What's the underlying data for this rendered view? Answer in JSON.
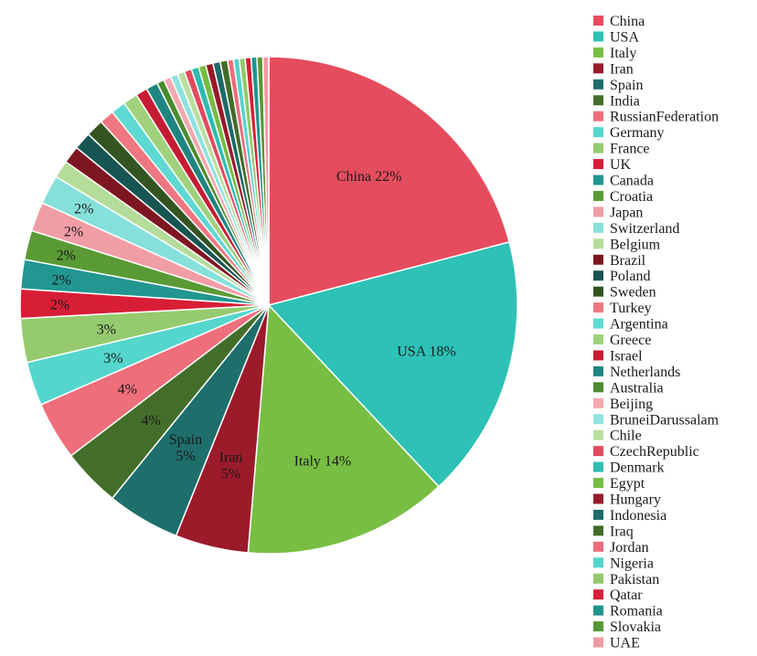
{
  "chart_data": {
    "type": "pie",
    "title": "",
    "start_angle_deg": 0,
    "direction": "clockwise",
    "legend_position": "right",
    "labels_inside": true,
    "slices": [
      {
        "name": "China",
        "value": 22.0,
        "color": "#E54C5E",
        "label": "China 22%"
      },
      {
        "name": "USA",
        "value": 18.0,
        "color": "#2EC1B6",
        "label": "USA 18%"
      },
      {
        "name": "Italy",
        "value": 14.0,
        "color": "#77BE43",
        "label": "Italy 14%"
      },
      {
        "name": "Iran",
        "value": 5.0,
        "color": "#9B1B2B",
        "label": "Iran\n5%"
      },
      {
        "name": "Spain",
        "value": 5.0,
        "color": "#1E6E6B",
        "label": "Spain\n5%"
      },
      {
        "name": "India",
        "value": 4.0,
        "color": "#436E2A",
        "label": "4%"
      },
      {
        "name": "RussianFederation",
        "value": 4.0,
        "color": "#EE6E7C",
        "label": "4%"
      },
      {
        "name": "Germany",
        "value": 3.0,
        "color": "#55D6CD",
        "label": "3%"
      },
      {
        "name": "France",
        "value": 3.0,
        "color": "#95CB6E",
        "label": "3%"
      },
      {
        "name": "UK",
        "value": 2.0,
        "color": "#D81E36",
        "label": "2%"
      },
      {
        "name": "Canada",
        "value": 2.0,
        "color": "#229690",
        "label": "2%"
      },
      {
        "name": "Croatia",
        "value": 2.0,
        "color": "#5A9A35",
        "label": "2%"
      },
      {
        "name": "Japan",
        "value": 2.0,
        "color": "#F19DA6",
        "label": "2%"
      },
      {
        "name": "Switzerland",
        "value": 2.0,
        "color": "#86E0DA",
        "label": "2%"
      },
      {
        "name": "Belgium",
        "value": 1.2,
        "color": "#B5DD9A",
        "label": ""
      },
      {
        "name": "Brazil",
        "value": 1.2,
        "color": "#7E1622",
        "label": ""
      },
      {
        "name": "Poland",
        "value": 1.2,
        "color": "#175553",
        "label": ""
      },
      {
        "name": "Sweden",
        "value": 1.2,
        "color": "#345522",
        "label": ""
      },
      {
        "name": "Turkey",
        "value": 1.0,
        "color": "#EE7782",
        "label": ""
      },
      {
        "name": "Argentina",
        "value": 1.0,
        "color": "#5ED9D1",
        "label": ""
      },
      {
        "name": "Greece",
        "value": 1.0,
        "color": "#A0D17C",
        "label": ""
      },
      {
        "name": "Israel",
        "value": 0.8,
        "color": "#C41D33",
        "label": ""
      },
      {
        "name": "Netherlands",
        "value": 0.8,
        "color": "#1F8580",
        "label": ""
      },
      {
        "name": "Australia",
        "value": 0.5,
        "color": "#4D8A2E",
        "label": ""
      },
      {
        "name": "Beijing",
        "value": 0.5,
        "color": "#F4A7AF",
        "label": ""
      },
      {
        "name": "BruneiDarussalam",
        "value": 0.5,
        "color": "#8FE3DD",
        "label": ""
      },
      {
        "name": "Chile",
        "value": 0.5,
        "color": "#B9DF9F",
        "label": ""
      },
      {
        "name": "CzechRepublic",
        "value": 0.5,
        "color": "#E24A5D",
        "label": ""
      },
      {
        "name": "Denmark",
        "value": 0.5,
        "color": "#2FBCB2",
        "label": ""
      },
      {
        "name": "Egypt",
        "value": 0.5,
        "color": "#75BC42",
        "label": ""
      },
      {
        "name": "Hungary",
        "value": 0.5,
        "color": "#981A2A",
        "label": ""
      },
      {
        "name": "Indonesia",
        "value": 0.5,
        "color": "#1D6B68",
        "label": ""
      },
      {
        "name": "Iraq",
        "value": 0.5,
        "color": "#426C29",
        "label": ""
      },
      {
        "name": "Jordan",
        "value": 0.4,
        "color": "#EC6C7B",
        "label": ""
      },
      {
        "name": "Nigeria",
        "value": 0.4,
        "color": "#53D4CB",
        "label": ""
      },
      {
        "name": "Pakistan",
        "value": 0.4,
        "color": "#93CA6C",
        "label": ""
      },
      {
        "name": "Qatar",
        "value": 0.4,
        "color": "#D61E36",
        "label": ""
      },
      {
        "name": "Romania",
        "value": 0.4,
        "color": "#21948E",
        "label": ""
      },
      {
        "name": "Slovakia",
        "value": 0.4,
        "color": "#589834",
        "label": ""
      },
      {
        "name": "UAE",
        "value": 0.4,
        "color": "#EF9BA4",
        "label": ""
      }
    ]
  }
}
